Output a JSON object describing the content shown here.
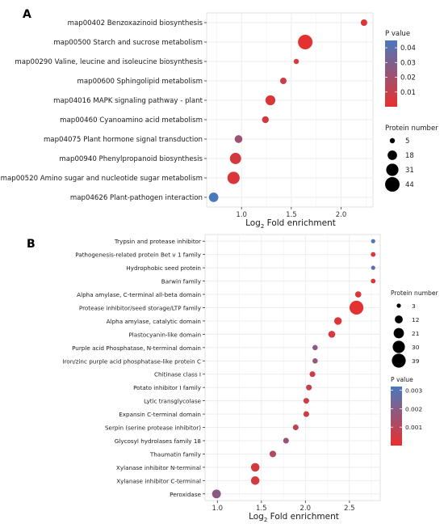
{
  "chart_data": [
    {
      "panel": "A",
      "type": "scatter",
      "xlabel": {
        "main": "Log",
        "sub": "2",
        "rest": " Fold enrichment"
      },
      "xticks": [
        "1.0",
        "1.5",
        "2.0"
      ],
      "xtick_values": [
        1.0,
        1.5,
        2.0
      ],
      "xlim": [
        0.65,
        2.32
      ],
      "color_legend": {
        "title": "P value",
        "ticks": [
          "0.04",
          "0.03",
          "0.02",
          "0.01"
        ],
        "tick_values": [
          0.04,
          0.03,
          0.02,
          0.01
        ],
        "range": [
          0.0,
          0.045
        ],
        "low_color": "#e8302d",
        "high_color": "#4a78bd"
      },
      "size_legend": {
        "title": "Protein number",
        "values": [
          5,
          18,
          31,
          44
        ]
      },
      "size_range": [
        5,
        44
      ],
      "categories": [
        "map00402 Benzoxazinoid biosynthesis",
        "map00500 Starch and sucrose metabolism",
        "map00290 Valine, leucine and isoleucine biosynthesis",
        "map00600 Sphingolipid metabolism",
        "map04016 MAPK signaling pathway - plant",
        "map00460 Cyanoamino acid metabolism",
        "map04075 Plant hormone signal transduction",
        "map00940 Phenylpropanoid biosynthesis",
        "map00520 Amino sugar and nucleotide sugar metabolism",
        "map04626 Plant-pathogen interaction"
      ],
      "points": [
        {
          "x": 2.23,
          "count": 8,
          "p": 0.003
        },
        {
          "x": 1.64,
          "count": 44,
          "p": 0.001
        },
        {
          "x": 1.55,
          "count": 5,
          "p": 0.006
        },
        {
          "x": 1.42,
          "count": 8,
          "p": 0.008
        },
        {
          "x": 1.29,
          "count": 20,
          "p": 0.004
        },
        {
          "x": 1.24,
          "count": 9,
          "p": 0.007
        },
        {
          "x": 0.97,
          "count": 12,
          "p": 0.022
        },
        {
          "x": 0.94,
          "count": 26,
          "p": 0.006
        },
        {
          "x": 0.92,
          "count": 31,
          "p": 0.004
        },
        {
          "x": 0.72,
          "count": 18,
          "p": 0.045
        }
      ]
    },
    {
      "panel": "B",
      "type": "scatter",
      "xlabel": {
        "main": "Log",
        "sub": "2",
        "rest": " Fold enrichment"
      },
      "xticks": [
        "1.0",
        "1.5",
        "2.0",
        "2.5"
      ],
      "xtick_values": [
        1.0,
        1.5,
        2.0,
        2.5
      ],
      "xlim": [
        0.86,
        2.85
      ],
      "color_legend": {
        "title": "P value",
        "ticks": [
          "0.003",
          "0.002",
          "0.001"
        ],
        "tick_values": [
          0.003,
          0.002,
          0.001
        ],
        "range": [
          0.0,
          0.0032
        ],
        "low_color": "#e8302d",
        "high_color": "#4a78bd"
      },
      "size_legend": {
        "title": "Protein number",
        "values": [
          3,
          12,
          21,
          30,
          39
        ]
      },
      "size_range": [
        3,
        39
      ],
      "categories": [
        "Trypsin and protease inhibitor",
        "Pathogenesis-related protein Bet v 1 family",
        "Hydrophobic seed protein",
        "Barwin family",
        "Alpha amylase, C-terminal all-beta domain",
        "Protease inhibitor/seed storage/LTP family",
        "Alpha amylase, catalytic domain",
        "Plastocyanin-like domain",
        "Purple acid Phosphatase, N-terminal domain",
        "Iron/zinc purple acid phosphatase-like protein C",
        "Chitinase class I",
        "Potato inhibitor I family",
        "Lytic transglycolase",
        "Expansin C-terminal domain",
        "Serpin (serine protease inhibitor)",
        "Glycosyl hydrolases family 18",
        "Thaumatin family",
        "Xylanase inhibitor N-terminal",
        "Xylanase inhibitor C-terminal",
        "Peroxidase"
      ],
      "points": [
        {
          "x": 2.77,
          "count": 3,
          "p": 0.0031
        },
        {
          "x": 2.77,
          "count": 4,
          "p": 0.0003
        },
        {
          "x": 2.77,
          "count": 3,
          "p": 0.0028
        },
        {
          "x": 2.77,
          "count": 4,
          "p": 0.0004
        },
        {
          "x": 2.6,
          "count": 7,
          "p": 0.0003
        },
        {
          "x": 2.58,
          "count": 39,
          "p": 0.0001
        },
        {
          "x": 2.37,
          "count": 11,
          "p": 0.0002
        },
        {
          "x": 2.3,
          "count": 9,
          "p": 0.0003
        },
        {
          "x": 2.11,
          "count": 5,
          "p": 0.0019
        },
        {
          "x": 2.11,
          "count": 5,
          "p": 0.0017
        },
        {
          "x": 2.08,
          "count": 6,
          "p": 0.0006
        },
        {
          "x": 2.04,
          "count": 6,
          "p": 0.0008
        },
        {
          "x": 2.01,
          "count": 6,
          "p": 0.0006
        },
        {
          "x": 2.01,
          "count": 6,
          "p": 0.0006
        },
        {
          "x": 1.89,
          "count": 6,
          "p": 0.0008
        },
        {
          "x": 1.78,
          "count": 6,
          "p": 0.0016
        },
        {
          "x": 1.63,
          "count": 8,
          "p": 0.0011
        },
        {
          "x": 1.43,
          "count": 14,
          "p": 0.0004
        },
        {
          "x": 1.43,
          "count": 14,
          "p": 0.0004
        },
        {
          "x": 0.99,
          "count": 15,
          "p": 0.0019
        }
      ]
    }
  ],
  "colors": {
    "low": "#e8302d",
    "high": "#4a78bd"
  }
}
